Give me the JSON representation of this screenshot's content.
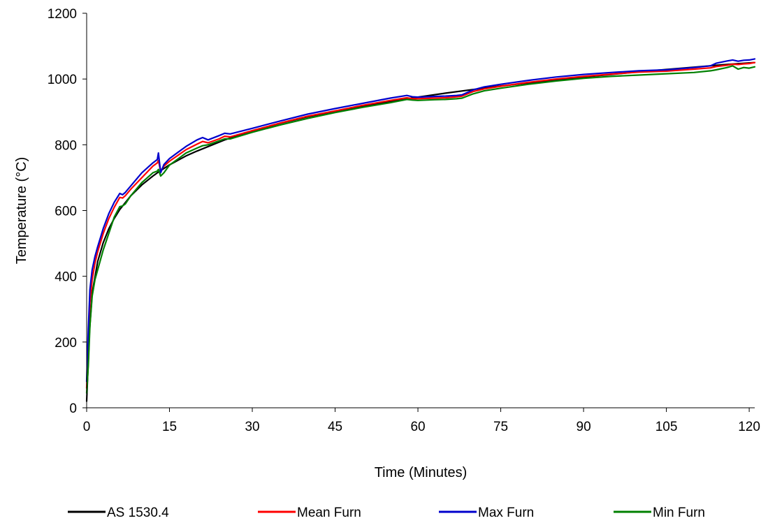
{
  "chart_data": {
    "type": "line",
    "xlabel": "Time (Minutes)",
    "ylabel": "Temperature (°C)",
    "xlim": [
      0,
      121
    ],
    "ylim": [
      0,
      1200
    ],
    "xticks": [
      0,
      15,
      30,
      45,
      60,
      75,
      90,
      105,
      120
    ],
    "xtick_labels": [
      "0",
      "15",
      "30",
      "45",
      "60",
      "75",
      "90",
      "105",
      "120"
    ],
    "yticks": [
      0,
      200,
      400,
      600,
      800,
      1000,
      1200
    ],
    "ytick_labels": [
      "0",
      "200",
      "400",
      "600",
      "800",
      "1000",
      "1200"
    ],
    "grid": false,
    "legend_position": "bottom",
    "series": [
      {
        "name": "AS 1530.4",
        "color": "#000000",
        "x": [
          0,
          0.5,
          1,
          2,
          3,
          4,
          5,
          6,
          8,
          10,
          12,
          13,
          15,
          18,
          20,
          25,
          30,
          35,
          40,
          45,
          50,
          55,
          60,
          65,
          70,
          75,
          80,
          85,
          90,
          95,
          100,
          105,
          110,
          115,
          120,
          121
        ],
        "y": [
          20,
          230,
          349,
          445,
          502,
          544,
          576,
          603,
          645,
          678,
          705,
          717,
          739,
          766,
          781,
          815,
          842,
          865,
          885,
          902,
          918,
          932,
          945,
          957,
          968,
          979,
          988,
          997,
          1006,
          1014,
          1022,
          1029,
          1036,
          1043,
          1049,
          1050
        ]
      },
      {
        "name": "Mean Furn",
        "color": "#ff0000",
        "x": [
          0,
          0.3,
          0.6,
          1,
          1.5,
          2,
          3,
          4,
          5,
          6,
          6.5,
          7,
          8,
          10,
          12,
          12.8,
          13,
          13.4,
          14,
          15,
          18,
          20,
          21,
          22,
          24,
          25,
          26,
          30,
          35,
          40,
          45,
          50,
          55,
          58,
          59,
          60,
          63,
          65,
          67,
          68,
          70,
          72,
          75,
          80,
          85,
          90,
          95,
          100,
          105,
          110,
          113,
          114,
          116,
          117,
          118,
          119,
          120,
          121
        ],
        "y": [
          60,
          200,
          320,
          390,
          440,
          475,
          530,
          575,
          610,
          640,
          638,
          645,
          665,
          700,
          735,
          745,
          752,
          720,
          735,
          750,
          785,
          802,
          810,
          806,
          818,
          826,
          824,
          843,
          866,
          887,
          903,
          920,
          935,
          943,
          940,
          940,
          942,
          943,
          946,
          948,
          962,
          970,
          978,
          990,
          1000,
          1008,
          1015,
          1021,
          1024,
          1030,
          1034,
          1038,
          1042,
          1045,
          1044,
          1046,
          1047,
          1050
        ]
      },
      {
        "name": "Max Furn",
        "color": "#0000cc",
        "x": [
          0,
          0.3,
          0.6,
          1,
          1.5,
          2,
          3,
          4,
          5,
          6,
          6.5,
          7,
          8,
          10,
          12,
          12.8,
          13,
          13.4,
          14,
          15,
          18,
          20,
          21,
          22,
          24,
          25,
          26,
          30,
          35,
          40,
          45,
          50,
          55,
          58,
          59,
          60,
          63,
          65,
          67,
          68,
          70,
          72,
          75,
          80,
          85,
          90,
          95,
          100,
          105,
          110,
          113,
          114,
          116,
          117,
          118,
          119,
          120,
          121
        ],
        "y": [
          80,
          240,
          360,
          420,
          460,
          490,
          545,
          590,
          625,
          652,
          648,
          655,
          675,
          715,
          745,
          755,
          775,
          715,
          740,
          758,
          795,
          815,
          822,
          815,
          828,
          835,
          833,
          850,
          872,
          893,
          910,
          926,
          942,
          950,
          946,
          945,
          947,
          948,
          950,
          952,
          967,
          976,
          984,
          996,
          1006,
          1014,
          1020,
          1025,
          1028,
          1035,
          1040,
          1048,
          1055,
          1058,
          1054,
          1057,
          1058,
          1061
        ]
      },
      {
        "name": "Min Furn",
        "color": "#008000",
        "x": [
          0,
          0.3,
          0.6,
          1,
          1.5,
          2,
          3,
          4,
          5,
          6,
          6.5,
          7,
          8,
          10,
          12,
          12.8,
          13,
          13.4,
          14,
          15,
          18,
          20,
          21,
          22,
          24,
          25,
          26,
          30,
          35,
          40,
          45,
          50,
          55,
          58,
          59,
          60,
          63,
          65,
          67,
          68,
          70,
          72,
          75,
          80,
          85,
          90,
          95,
          100,
          105,
          110,
          113,
          114,
          116,
          117,
          118,
          119,
          120,
          121
        ],
        "y": [
          45,
          130,
          250,
          340,
          390,
          420,
          480,
          530,
          580,
          612,
          614,
          620,
          645,
          685,
          715,
          720,
          725,
          705,
          715,
          738,
          775,
          790,
          797,
          800,
          812,
          818,
          818,
          838,
          860,
          880,
          898,
          914,
          928,
          938,
          936,
          935,
          937,
          938,
          940,
          942,
          955,
          964,
          972,
          984,
          994,
          1002,
          1008,
          1012,
          1016,
          1020,
          1025,
          1028,
          1035,
          1040,
          1030,
          1035,
          1033,
          1037
        ]
      }
    ]
  }
}
